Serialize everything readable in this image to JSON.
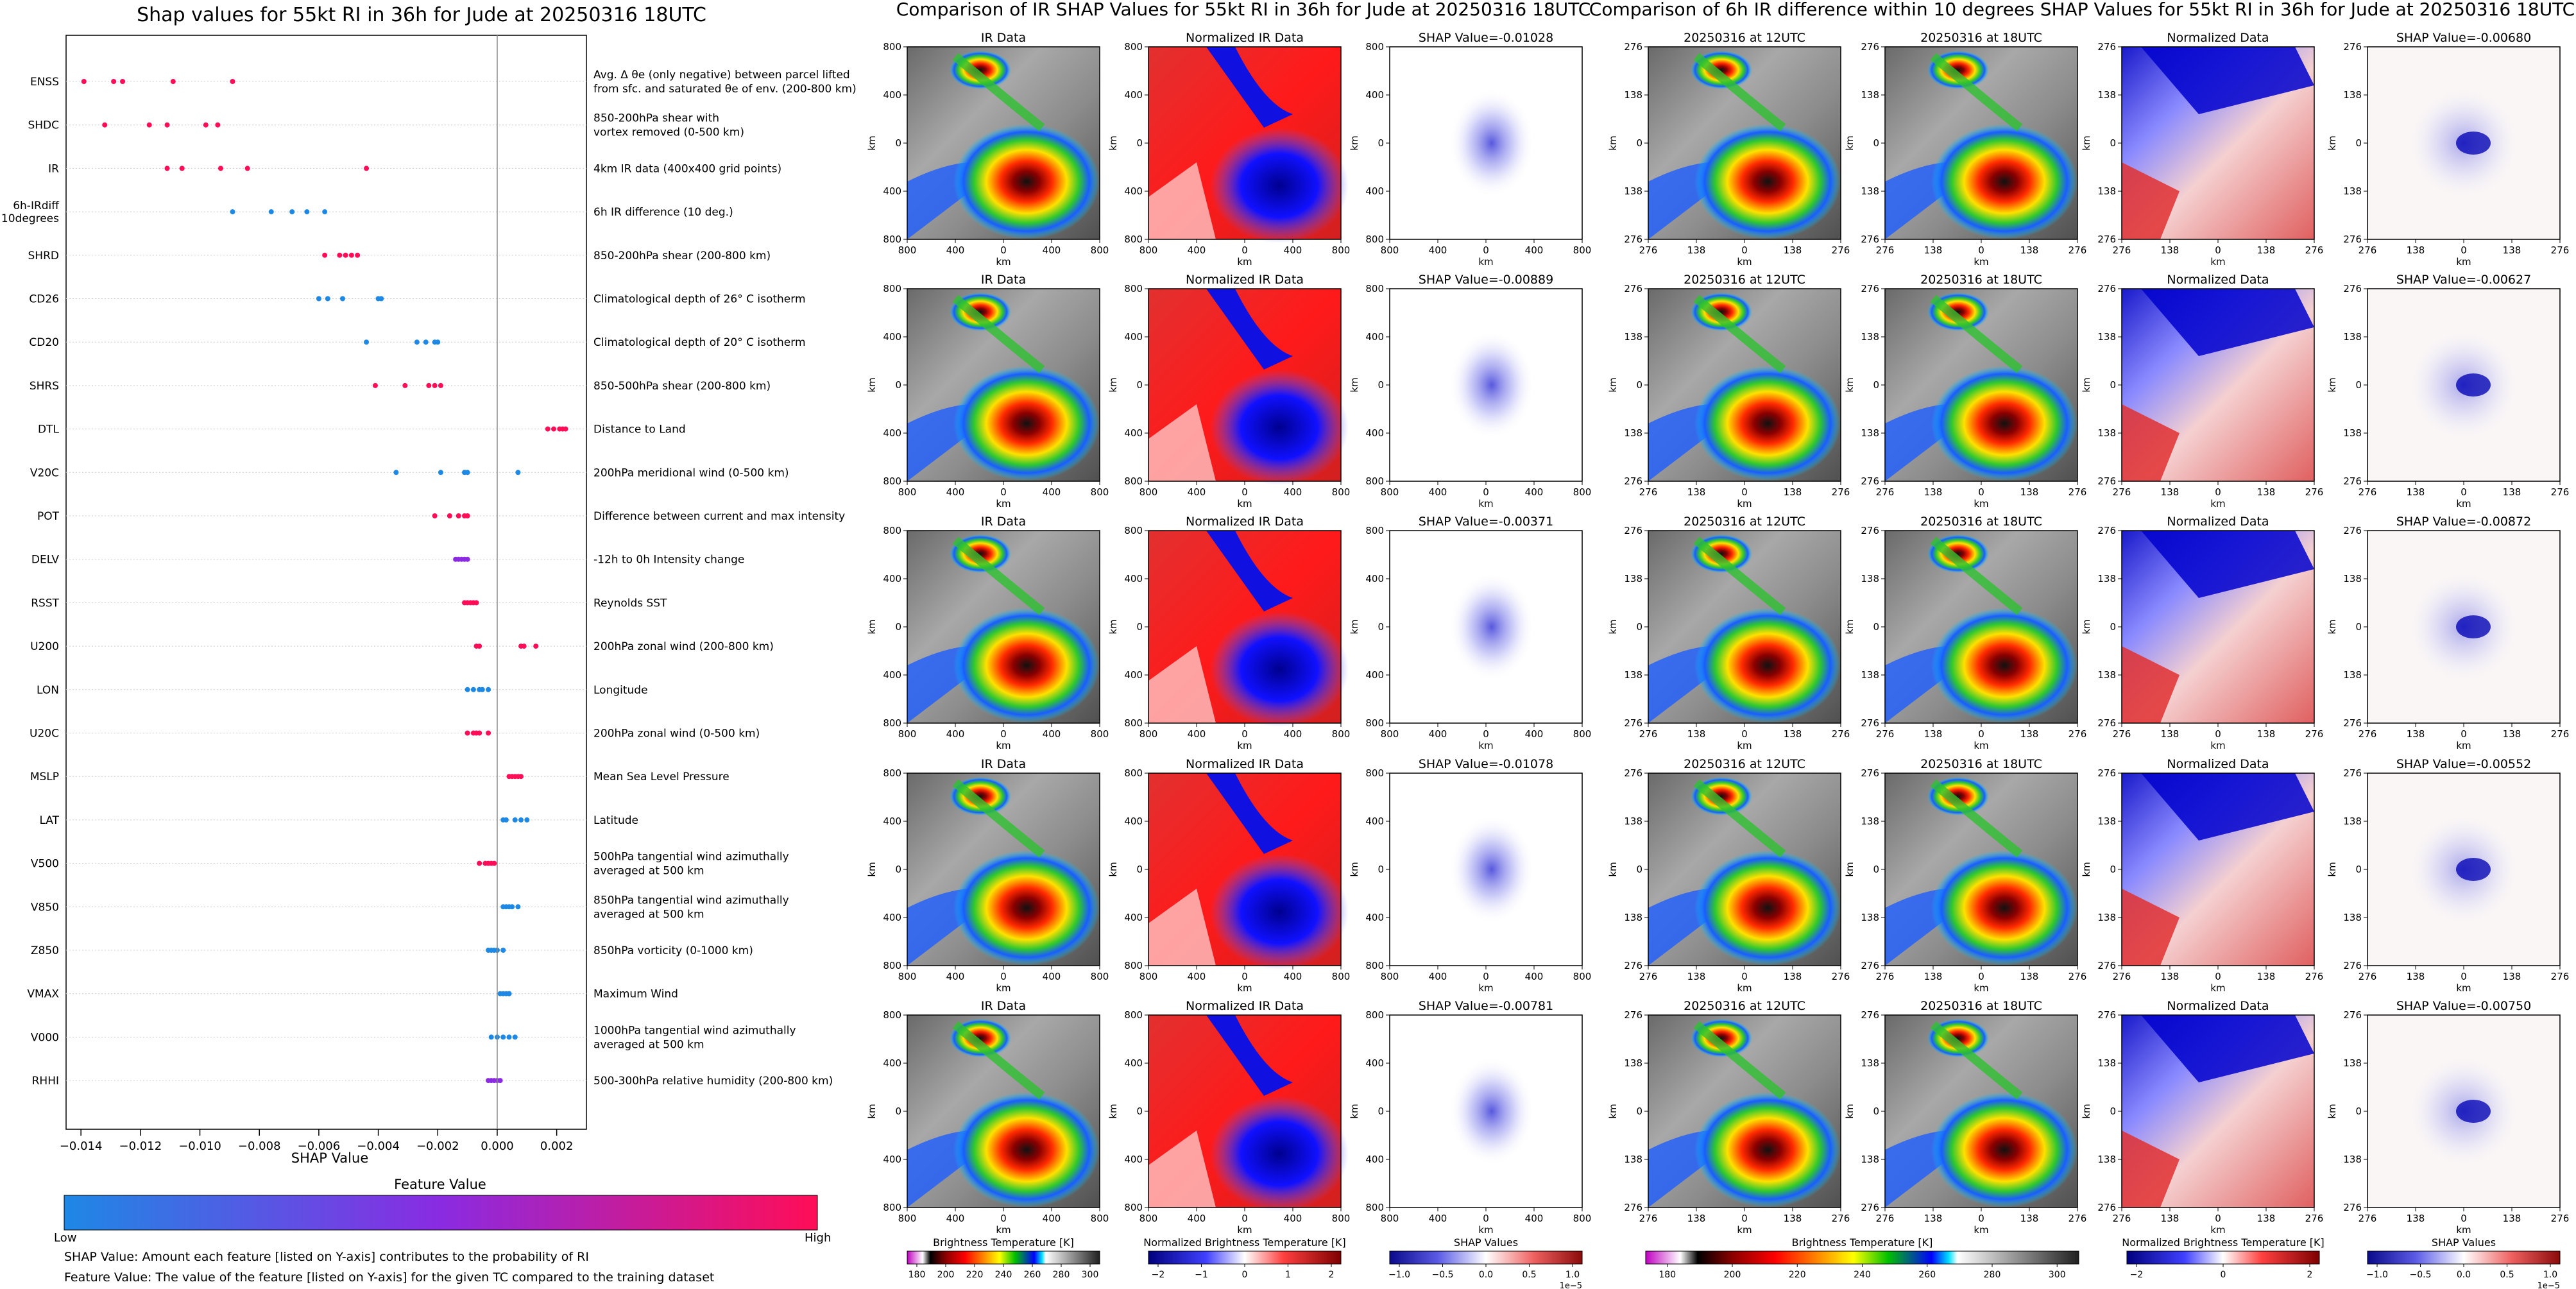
{
  "colors": {
    "low": "#1e88e5",
    "mid": "#8a2be2",
    "high": "#ff0d57",
    "ir_bg": "#c04040"
  },
  "shap_summary": {
    "title": "Shap values for 55kt RI in 36h for Jude at 20250316 18UTC",
    "xlabel": "SHAP Value",
    "colorbar_title": "Feature Value",
    "colorbar_low": "Low",
    "colorbar_high": "High",
    "note1": "SHAP Value: Amount each feature [listed on Y-axis] contributes to the probability of RI",
    "note2": "Feature Value: The value of the feature [listed on Y-axis] for the given TC compared to the training dataset"
  },
  "chart_data": [
    {
      "type": "scatter",
      "title": "Shap values for 55kt RI in 36h for Jude at 20250316 18UTC",
      "xlabel": "SHAP Value",
      "xlim": [
        -0.0145,
        0.003
      ],
      "xticks": [
        -0.014,
        -0.012,
        -0.01,
        -0.008,
        -0.006,
        -0.004,
        -0.002,
        0.0,
        0.002
      ],
      "xtick_labels": [
        "−0.014",
        "−0.012",
        "−0.010",
        "−0.008",
        "−0.006",
        "−0.004",
        "−0.002",
        "0.000",
        "0.002"
      ],
      "features": [
        {
          "name": "ENSS",
          "description": "Avg. Δ θe (only negative) between parcel lifted|from sfc. and saturated θe of env. (200-800 km)",
          "values": [
            -0.0139,
            -0.0129,
            -0.0126,
            -0.0109,
            -0.0089
          ],
          "color": "high"
        },
        {
          "name": "SHDC",
          "description": "850-200hPa shear with|vortex removed (0-500 km)",
          "values": [
            -0.0132,
            -0.0117,
            -0.0111,
            -0.0098,
            -0.0094
          ],
          "color": "high"
        },
        {
          "name": "IR",
          "description": "4km IR data (400x400 grid points)",
          "values": [
            -0.0111,
            -0.0106,
            -0.0093,
            -0.0084,
            -0.0044
          ],
          "color": "high"
        },
        {
          "name": "6h-IRdiff|10degrees",
          "description": "6h IR difference (10 deg.)",
          "values": [
            -0.0089,
            -0.0076,
            -0.0069,
            -0.0064,
            -0.0058
          ],
          "color": "low"
        },
        {
          "name": "SHRD",
          "description": "850-200hPa shear (200-800 km)",
          "values": [
            -0.0058,
            -0.0053,
            -0.0051,
            -0.0049,
            -0.0047
          ],
          "color": "high"
        },
        {
          "name": "CD26",
          "description": "Climatological depth of 26° C isotherm",
          "values": [
            -0.006,
            -0.0057,
            -0.0052,
            -0.004,
            -0.0039
          ],
          "color": "low"
        },
        {
          "name": "CD20",
          "description": "Climatological depth of 20° C isotherm",
          "values": [
            -0.0044,
            -0.0027,
            -0.0024,
            -0.0021,
            -0.002
          ],
          "color": "low"
        },
        {
          "name": "SHRS",
          "description": "850-500hPa shear (200-800 km)",
          "values": [
            -0.0041,
            -0.0031,
            -0.0023,
            -0.0021,
            -0.0019
          ],
          "color": "high"
        },
        {
          "name": "DTL",
          "description": "Distance to Land",
          "values": [
            0.0017,
            0.0019,
            0.0021,
            0.0022,
            0.0023
          ],
          "color": "high"
        },
        {
          "name": "V20C",
          "description": "200hPa meridional wind (0-500 km)",
          "values": [
            -0.0034,
            -0.0019,
            -0.0011,
            -0.001,
            0.0007
          ],
          "color": "low"
        },
        {
          "name": "POT",
          "description": "Difference between current and max intensity",
          "values": [
            -0.0021,
            -0.0016,
            -0.0013,
            -0.0011,
            -0.001
          ],
          "color": "high"
        },
        {
          "name": "DELV",
          "description": "-12h to 0h Intensity change",
          "values": [
            -0.0014,
            -0.0013,
            -0.0012,
            -0.0011,
            -0.001
          ],
          "color": "mid"
        },
        {
          "name": "RSST",
          "description": "Reynolds SST",
          "values": [
            -0.0011,
            -0.001,
            -0.0009,
            -0.0008,
            -0.0007
          ],
          "color": "high"
        },
        {
          "name": "U200",
          "description": "200hPa zonal wind (200-800 km)",
          "values": [
            -0.0007,
            -0.0006,
            0.0008,
            0.0009,
            0.0013
          ],
          "color": "high"
        },
        {
          "name": "LON",
          "description": "Longitude",
          "values": [
            -0.001,
            -0.0008,
            -0.0006,
            -0.0005,
            -0.0003
          ],
          "color": "low"
        },
        {
          "name": "U20C",
          "description": "200hPa zonal wind (0-500 km)",
          "values": [
            -0.001,
            -0.0008,
            -0.0007,
            -0.0006,
            -0.0003
          ],
          "color": "high"
        },
        {
          "name": "MSLP",
          "description": "Mean Sea Level Pressure",
          "values": [
            0.0004,
            0.0005,
            0.0006,
            0.0007,
            0.0008
          ],
          "color": "high"
        },
        {
          "name": "LAT",
          "description": "Latitude",
          "values": [
            0.0002,
            0.0003,
            0.0006,
            0.0008,
            0.001
          ],
          "color": "low"
        },
        {
          "name": "V500",
          "description": "500hPa tangential wind azimuthally|averaged at 500 km",
          "values": [
            -0.0006,
            -0.0004,
            -0.0003,
            -0.0002,
            -0.0001
          ],
          "color": "high"
        },
        {
          "name": "V850",
          "description": "850hPa tangential wind azimuthally|averaged at 500 km",
          "values": [
            0.0002,
            0.0003,
            0.0004,
            0.0005,
            0.0007
          ],
          "color": "low"
        },
        {
          "name": "Z850",
          "description": "850hPa vorticity (0-1000 km)",
          "values": [
            -0.0003,
            -0.0002,
            -0.0001,
            0.0,
            0.0002
          ],
          "color": "low"
        },
        {
          "name": "VMAX",
          "description": "Maximum Wind",
          "values": [
            0.0001,
            0.0002,
            0.0003,
            0.0004,
            0.0004
          ],
          "color": "low"
        },
        {
          "name": "V000",
          "description": "1000hPa tangential wind azimuthally|averaged at 500 km",
          "values": [
            -0.0002,
            0.0,
            0.0002,
            0.0004,
            0.0006
          ],
          "color": "low"
        },
        {
          "name": "RHHI",
          "description": "500-300hPa relative humidity (200-800 km)",
          "values": [
            -0.0003,
            -0.0002,
            -0.0001,
            0.0,
            0.0001
          ],
          "color": "mid"
        }
      ]
    },
    {
      "type": "heatmap",
      "title": "Comparison of IR SHAP Values for 55kt RI in 36h for Jude at 20250316 18UTC",
      "panel_titles": [
        "IR Data",
        "Normalized IR Data"
      ],
      "shap_values": [
        "SHAP Value=-0.01028",
        "SHAP Value=-0.00889",
        "SHAP Value=-0.00371",
        "SHAP Value=-0.01078",
        "SHAP Value=-0.00781"
      ],
      "axis_label": "km",
      "xticks": [
        "800",
        "400",
        "0",
        "400",
        "800"
      ],
      "yticks": [
        "800",
        "400",
        "0",
        "400",
        "800"
      ],
      "colorbars": [
        {
          "label": "Brightness Temperature [K]",
          "ticks": [
            "180",
            "200",
            "220",
            "240",
            "260",
            "280",
            "300"
          ]
        },
        {
          "label": "Normalized Brightness Temperature [K]",
          "ticks": [
            "−2",
            "−1",
            "0",
            "1",
            "2"
          ]
        },
        {
          "label": "SHAP Values",
          "ticks": [
            "−1.0",
            "−0.5",
            "0.0",
            "0.5",
            "1.0"
          ],
          "exponent": "1e−5"
        }
      ]
    },
    {
      "type": "heatmap",
      "title": "Comparison of 6h IR difference within 10 degrees SHAP Values for 55kt RI in 36h for Jude at 20250316 18UTC",
      "panel_titles": [
        "20250316 at 12UTC",
        "20250316 at 18UTC",
        "Normalized Data"
      ],
      "shap_values": [
        "SHAP Value=-0.00680",
        "SHAP Value=-0.00627",
        "SHAP Value=-0.00872",
        "SHAP Value=-0.00552",
        "SHAP Value=-0.00750"
      ],
      "axis_label": "km",
      "xticks": [
        "276",
        "138",
        "0",
        "138",
        "276"
      ],
      "yticks": [
        "276",
        "138",
        "0",
        "138",
        "276"
      ],
      "colorbars": [
        {
          "label": "Brightness Temperature [K]",
          "ticks": [
            "180",
            "200",
            "220",
            "240",
            "260",
            "280",
            "300"
          ]
        },
        {
          "label": "Normalized Brightness Temperature [K]",
          "ticks": [
            "−2",
            "0",
            "2"
          ]
        },
        {
          "label": "SHAP Values",
          "ticks": [
            "−1.0",
            "−0.5",
            "0.0",
            "0.5",
            "1.0"
          ],
          "exponent": "1e−5"
        }
      ]
    }
  ]
}
